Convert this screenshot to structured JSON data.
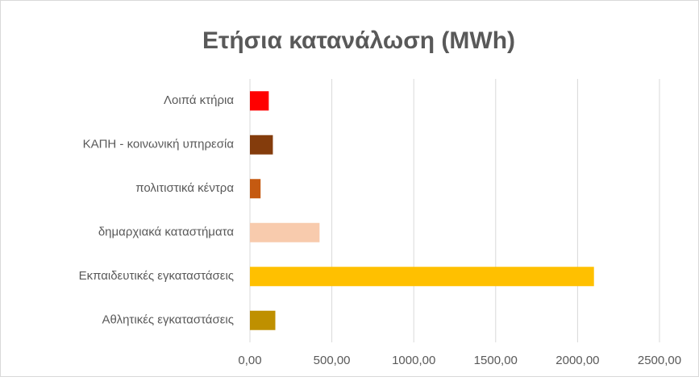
{
  "chart_data": {
    "type": "barh",
    "title": "Ετήσια κατανάλωση (MWh)",
    "categories": [
      "Λοιπά κτήρια",
      "ΚΑΠΗ - κοινωνική υπηρεσία",
      "πολιτιστικά κέντρα",
      "δημαρχιακά καταστήματα",
      "Εκπαιδευτικές εγκαταστάσεις",
      "Αθλητικές εγκαταστάσεις"
    ],
    "values": [
      115,
      140,
      65,
      425,
      2100,
      155
    ],
    "colors": [
      "#ff0000",
      "#843c0c",
      "#c55a11",
      "#f8cbad",
      "#ffc000",
      "#bf9000"
    ],
    "xlim": [
      0,
      2500
    ],
    "xticks": [
      {
        "value": 0,
        "label": "0,00"
      },
      {
        "value": 500,
        "label": "500,00"
      },
      {
        "value": 1000,
        "label": "1000,00"
      },
      {
        "value": 1500,
        "label": "1500,00"
      },
      {
        "value": 2000,
        "label": "2000,00"
      },
      {
        "value": 2500,
        "label": "2500,00"
      }
    ],
    "grid": true
  }
}
